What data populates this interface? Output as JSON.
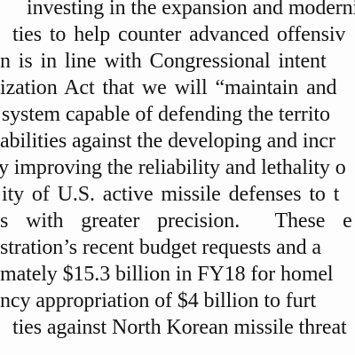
{
  "document": {
    "lines": [
      "investing in the expansion and moderniz",
      "ties to help counter advanced offensiv",
      "n is in line with Congressional intent",
      "ization Act that we will “maintain and",
      " system capable of defending the territo",
      "abilities against the developing and incr",
      "y improving the reliability and lethality o",
      "ity of U.S. active missile defenses to t",
      "s with greater precision.  These e",
      "stration’s recent budget requests and a",
      "mately $15.3 billion in FY18 for homel",
      "ncy appropriation of $4 billion to furt",
      "ties against North Korean missile threat"
    ]
  }
}
